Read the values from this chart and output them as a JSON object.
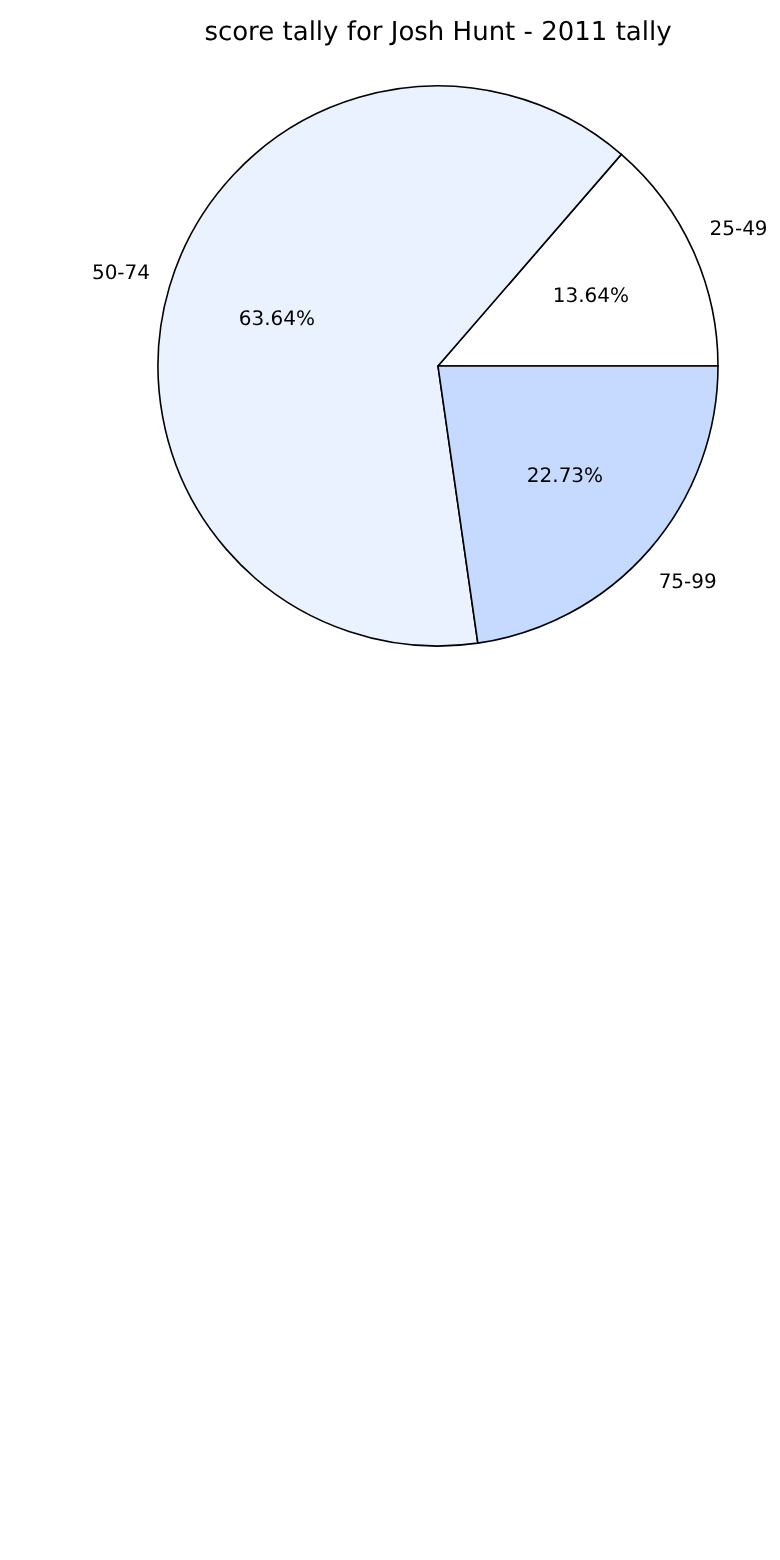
{
  "chart_data": {
    "type": "pie",
    "title": "score tally for Josh Hunt - 2011 tally",
    "categories": [
      "25-49",
      "50-74",
      "75-99"
    ],
    "values": [
      13.64,
      63.64,
      22.73
    ],
    "value_labels": [
      "13.64%",
      "63.64%",
      "22.73%"
    ],
    "colors": [
      "#ffffff",
      "#eaf1ff",
      "#c6d9ff"
    ],
    "legend": false
  }
}
